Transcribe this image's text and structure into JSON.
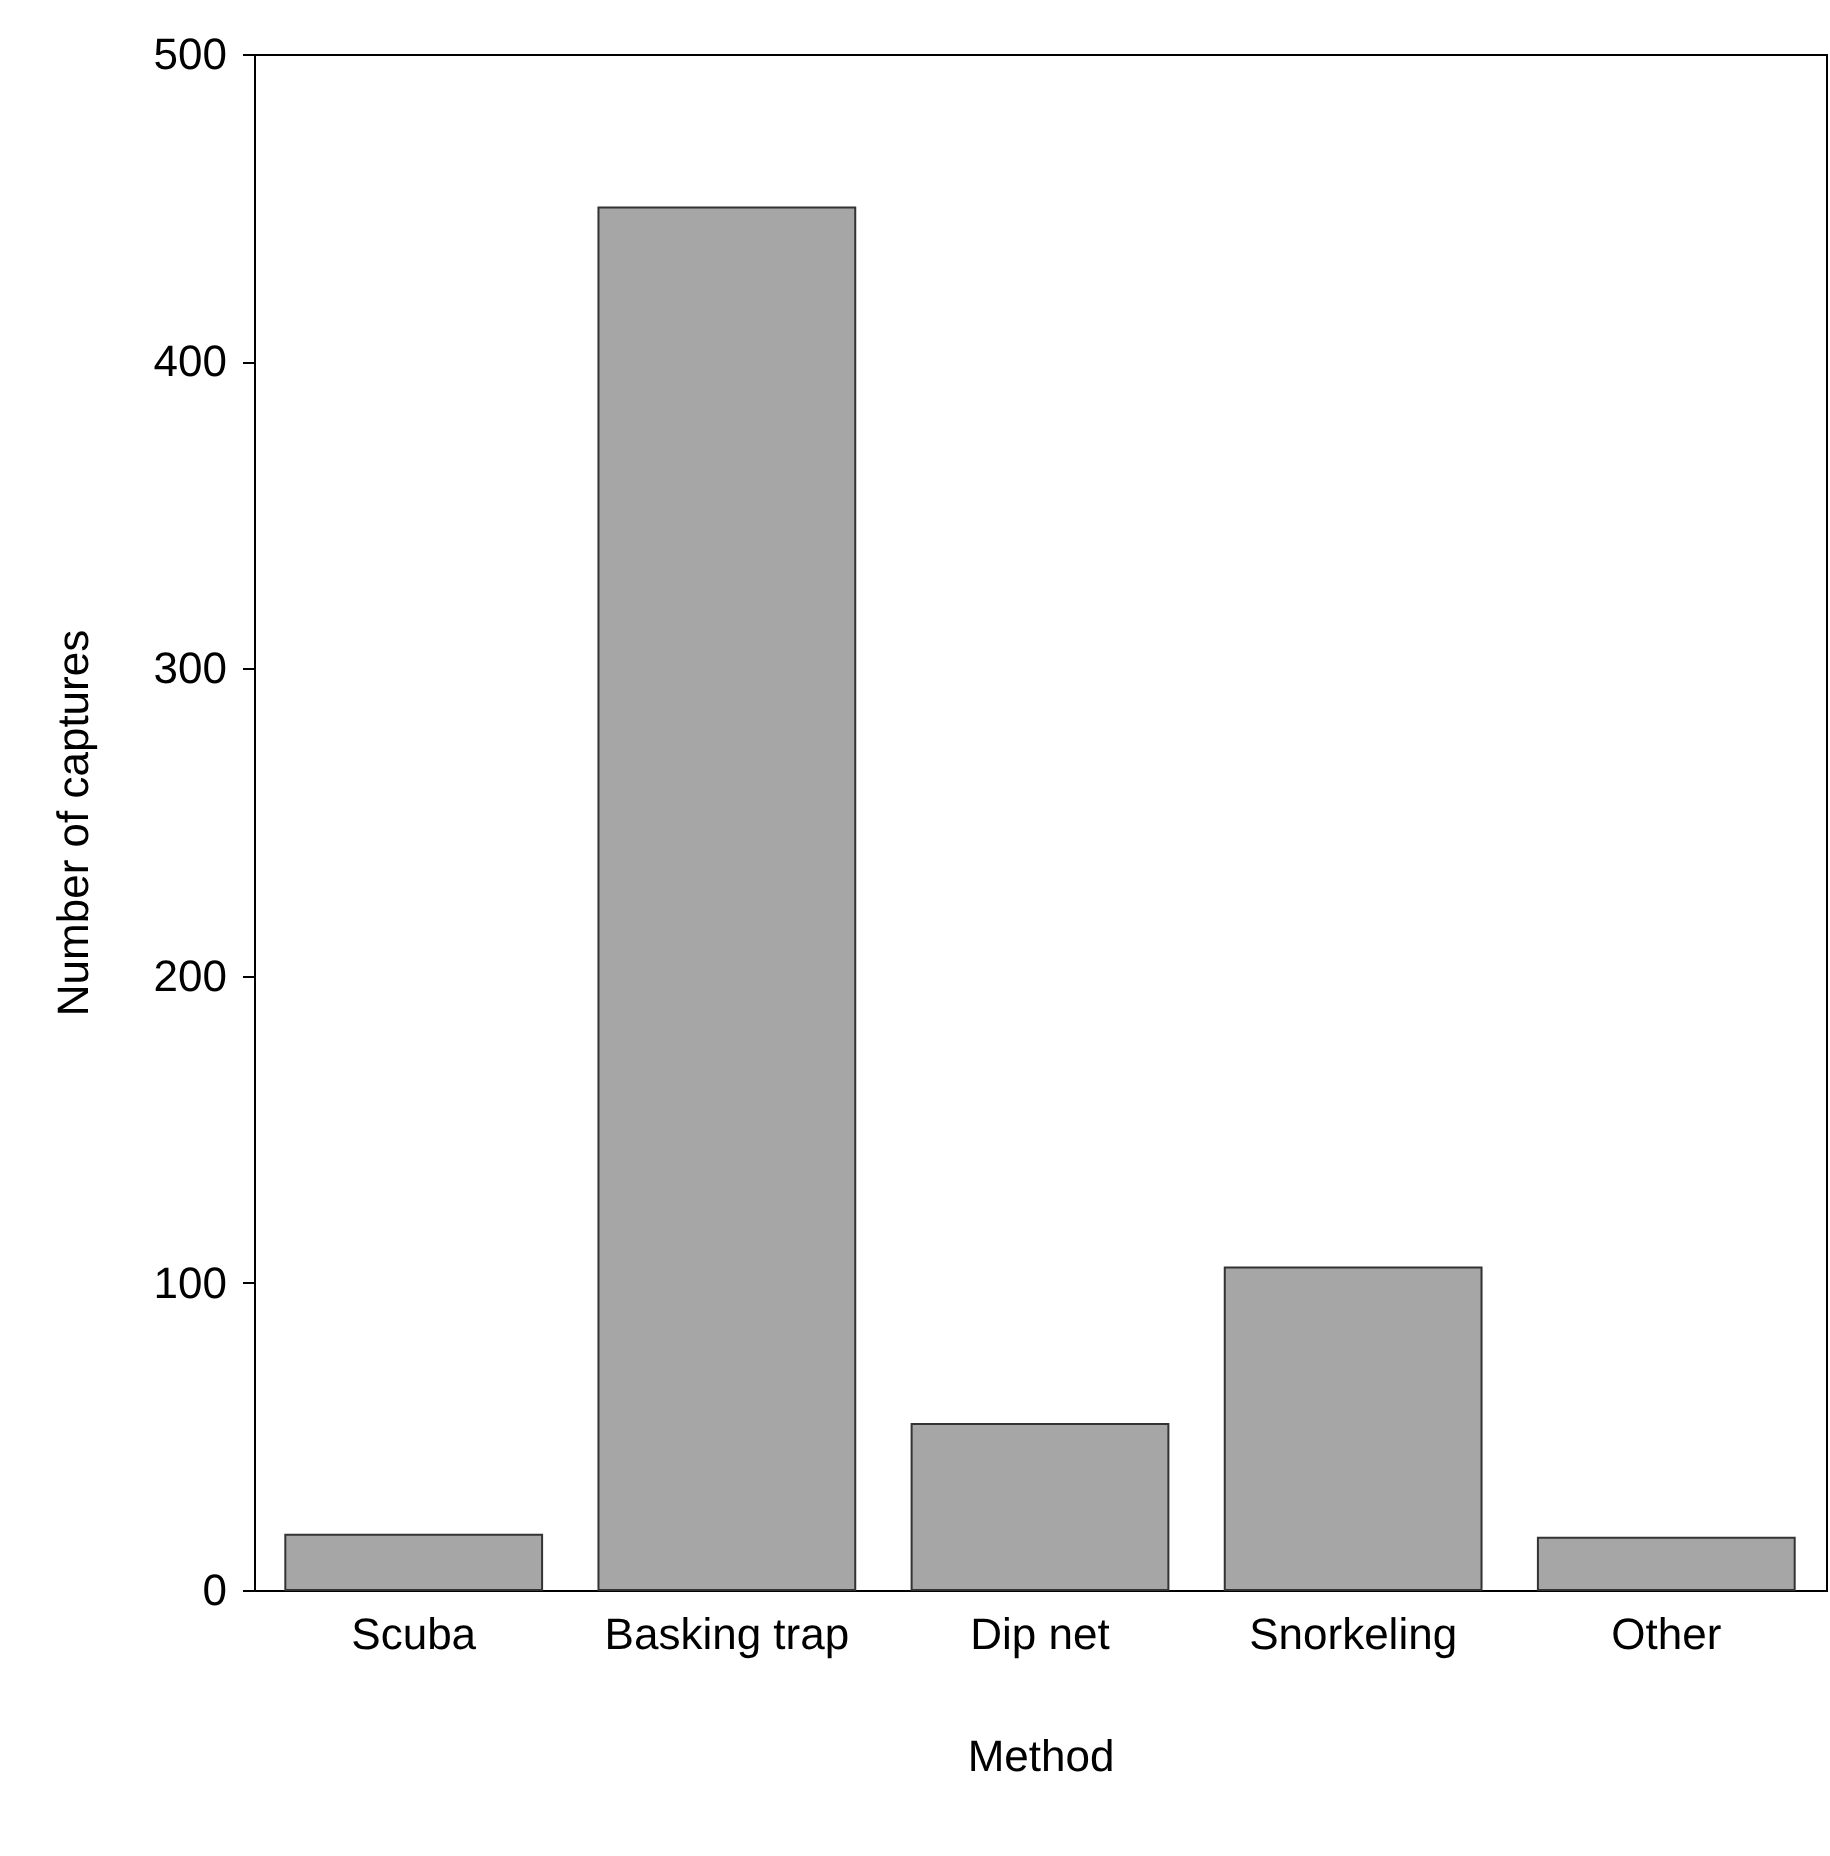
{
  "chart_data": {
    "type": "bar",
    "xlabel": "Method",
    "ylabel": "Number of captures",
    "categories": [
      "Scuba",
      "Basking trap",
      "Dip net",
      "Snorkeling",
      "Other"
    ],
    "values": [
      18,
      450,
      54,
      105,
      17
    ],
    "color": "#a6a6a6",
    "ylim": [
      0,
      500
    ],
    "yticks": [
      0,
      100,
      200,
      300,
      400,
      500
    ],
    "grid": false
  }
}
